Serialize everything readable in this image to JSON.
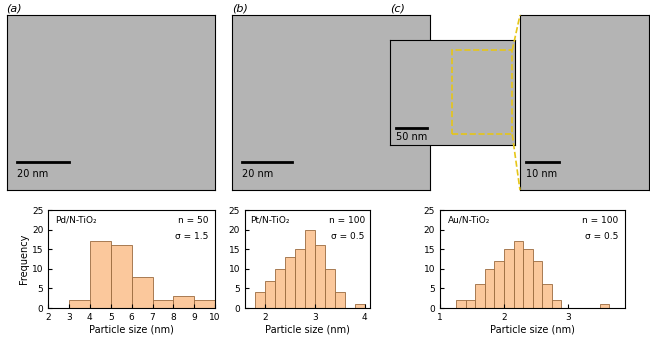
{
  "chart_data": [
    {
      "type": "histogram",
      "bins": [
        3,
        4,
        5,
        6,
        7,
        8,
        9,
        10
      ],
      "values": [
        2,
        17,
        16,
        8,
        2,
        3,
        2
      ],
      "color": "#fbc89c",
      "xlim": [
        2,
        10
      ],
      "xticks": [
        2,
        3,
        4,
        5,
        6,
        7,
        8,
        9,
        10
      ],
      "ylim": [
        0,
        25
      ],
      "yticks": [
        0,
        5,
        10,
        15,
        20,
        25
      ],
      "x_label": "Particle size (nm)",
      "y_label": "Frequency",
      "annotations": [
        "Pd/N-TiO₂",
        "n = 50",
        "σ = 1.5"
      ]
    },
    {
      "type": "histogram",
      "bins": [
        1.8,
        2.0,
        2.2,
        2.4,
        2.6,
        2.8,
        3.0,
        3.2,
        3.4,
        3.6,
        3.8,
        4.0
      ],
      "values": [
        4,
        7,
        10,
        13,
        15,
        20,
        16,
        10,
        4,
        0,
        1
      ],
      "color": "#fbc89c",
      "xlim": [
        1.6,
        4.1
      ],
      "xticks": [
        2,
        3,
        4
      ],
      "ylim": [
        0,
        25
      ],
      "yticks": [
        0,
        5,
        10,
        15,
        20,
        25
      ],
      "x_label": "Particle size (nm)",
      "annotations": [
        "Pt/N-TiO₂",
        "n = 100",
        "σ = 0.5"
      ]
    },
    {
      "type": "histogram",
      "bins": [
        1.25,
        1.4,
        1.55,
        1.7,
        1.85,
        2.0,
        2.15,
        2.3,
        2.45,
        2.6,
        2.75,
        2.9,
        3.05,
        3.2,
        3.35,
        3.5,
        3.65
      ],
      "values": [
        2,
        2,
        6,
        10,
        12,
        15,
        17,
        15,
        12,
        6,
        2,
        0,
        0,
        0,
        0,
        1
      ],
      "color": "#fbc89c",
      "xlim": [
        1,
        3.9
      ],
      "xticks": [
        1,
        2,
        3
      ],
      "ylim": [
        0,
        25
      ],
      "yticks": [
        0,
        5,
        10,
        15,
        20,
        25
      ],
      "x_label": "Particle size (nm)",
      "annotations": [
        "Au/N-TiO₂",
        "n = 100",
        "σ = 0.5"
      ]
    }
  ],
  "panels": [
    {
      "label": "(a)",
      "scale_bars": [
        "20 nm"
      ]
    },
    {
      "label": "(b)",
      "scale_bars": [
        "20 nm"
      ]
    },
    {
      "label": "(c)",
      "scale_bars": [
        "50 nm",
        "10 nm"
      ]
    }
  ]
}
